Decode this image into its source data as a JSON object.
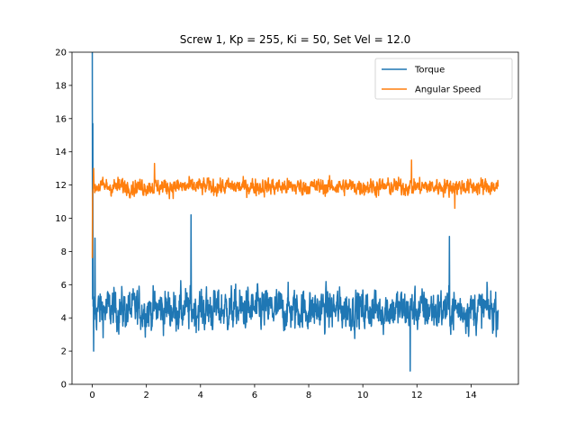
{
  "chart_data": {
    "type": "line",
    "title": "Screw 1, Kp = 255, Ki = 50, Set Vel = 12.0",
    "xlabel": "",
    "ylabel": "",
    "xlim": [
      -0.75,
      15.75
    ],
    "ylim": [
      0,
      20
    ],
    "xticks": [
      0,
      2,
      4,
      6,
      8,
      10,
      12,
      14
    ],
    "yticks": [
      0,
      2,
      4,
      6,
      8,
      10,
      12,
      14,
      16,
      18,
      20
    ],
    "grid": false,
    "legend": {
      "placement": "top-right"
    },
    "x_range": [
      0,
      15
    ],
    "series": [
      {
        "name": "Torque",
        "color": "#1f77b4",
        "baseline": 4.5,
        "typical_range": [
          2.5,
          7.0
        ],
        "extremes": [
          0.8,
          20.0
        ],
        "keypoints": [
          [
            0.0,
            20.0
          ],
          [
            0.02,
            15.7
          ],
          [
            0.05,
            2.0
          ],
          [
            0.1,
            8.8
          ],
          [
            3.65,
            10.2
          ],
          [
            11.75,
            0.8
          ],
          [
            13.2,
            8.9
          ],
          [
            14.9,
            4.6
          ]
        ]
      },
      {
        "name": "Angular Speed",
        "color": "#ff7f0e",
        "baseline": 11.9,
        "typical_range": [
          11.0,
          12.8
        ],
        "extremes": [
          7.6,
          13.5
        ],
        "keypoints": [
          [
            0.0,
            7.6
          ],
          [
            0.05,
            13.0
          ],
          [
            2.3,
            13.3
          ],
          [
            11.8,
            13.5
          ],
          [
            13.4,
            10.6
          ],
          [
            15.0,
            11.9
          ]
        ]
      }
    ]
  }
}
